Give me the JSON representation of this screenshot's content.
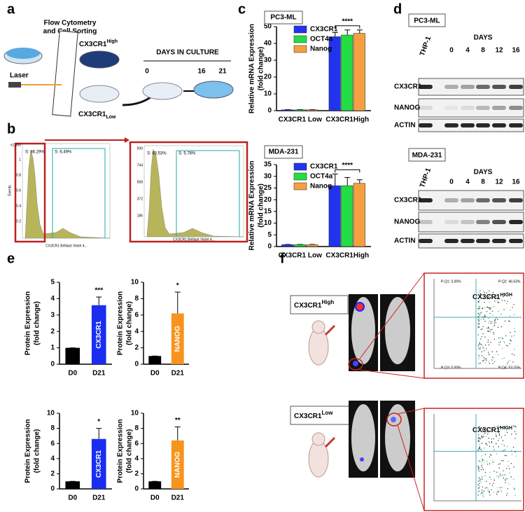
{
  "panel_letters": [
    "a",
    "b",
    "c",
    "d",
    "e",
    "f"
  ],
  "panel_a": {
    "sorting": [
      "Flow Cytometry",
      "and Cell Sorting"
    ],
    "laser": "Laser",
    "high": {
      "name": "CX3CR1",
      "sup": "High"
    },
    "low": {
      "name": "CX3CR1",
      "sup": "Low"
    },
    "culture_title": "DAYS IN CULTURE",
    "days": [
      "0",
      "16",
      "21"
    ]
  },
  "panel_b": {
    "gates_left": [
      "S: 86.29%",
      "S: 6.49%"
    ],
    "gates_right": [
      "S: 83.53%",
      "S: 5.78%"
    ],
    "y_ticks_left": [
      "x1,000",
      "1",
      "0.8",
      "0.6",
      "0.4",
      "0.2"
    ],
    "y_ticks_right": [
      "930",
      "744",
      "558",
      "372",
      "186"
    ],
    "x_label": "CX3CR1 Brilliant Violet 4...",
    "y_label": "Events"
  },
  "panel_d": {
    "blots": [
      {
        "cell_line": "PC3-ML",
        "days_title": "DAYS",
        "lanes": [
          "THP-1",
          "0",
          "4",
          "8",
          "12",
          "16"
        ],
        "rows": [
          "CX3CR1",
          "NANOG",
          "ACTIN"
        ]
      },
      {
        "cell_line": "MDA-231",
        "days_title": "DAYS",
        "lanes": [
          "THP-1",
          "0",
          "4",
          "8",
          "12",
          "16"
        ],
        "rows": [
          "CX3CR1",
          "NANOG",
          "ACTIN"
        ]
      }
    ]
  },
  "panel_f": {
    "groups": [
      {
        "name": "CX3CR1",
        "sup": "High"
      },
      {
        "name": "CX3CR1",
        "sup": "Low"
      }
    ],
    "inset_label": {
      "name": "CX3CR1",
      "sup": "HIGH"
    },
    "quadrants": [
      "P-Q1: 0.00%",
      "P-Q2: 46.63%",
      "P-Q3: 0.00%",
      "P-Q4: 53.15%"
    ]
  },
  "chart_data": [
    {
      "type": "bar",
      "tag": "PC3-ML",
      "y_label": [
        "Relative mRNA Expression",
        "(fold change)"
      ],
      "categories": [
        "CX3CR1 Low",
        "CX3CR1High"
      ],
      "series": [
        {
          "name": "CX3CR1",
          "color": "#2233ee",
          "values": [
            0.5,
            44
          ],
          "errors": [
            0.1,
            2.5
          ]
        },
        {
          "name": "OCT4a",
          "color": "#22dd44",
          "values": [
            0.5,
            45
          ],
          "errors": [
            0.1,
            3
          ]
        },
        {
          "name": "Nanog",
          "color": "#f5a040",
          "values": [
            0.5,
            46
          ],
          "errors": [
            0.1,
            2
          ]
        }
      ],
      "annotation": "****",
      "ylim": [
        0,
        50
      ],
      "yticks": [
        0,
        10,
        20,
        30,
        40,
        50
      ]
    },
    {
      "type": "bar",
      "tag": "MDA-231",
      "y_label": [
        "Relative mRNA Expression",
        "(fold change)"
      ],
      "categories": [
        "CX3CR1 Low",
        "CX3CR1High"
      ],
      "series": [
        {
          "name": "CX3CR1",
          "color": "#2233ee",
          "values": [
            0.8,
            26
          ],
          "errors": [
            0.1,
            5
          ]
        },
        {
          "name": "OCT4a",
          "color": "#22dd44",
          "values": [
            0.8,
            26
          ],
          "errors": [
            0.1,
            3.5
          ]
        },
        {
          "name": "Nanog",
          "color": "#f5a040",
          "values": [
            0.8,
            27
          ],
          "errors": [
            0.1,
            1.5
          ]
        }
      ],
      "annotation": "****",
      "ylim": [
        0,
        35
      ],
      "yticks": [
        0,
        5,
        10,
        15,
        20,
        25,
        30,
        35
      ]
    },
    {
      "type": "bar",
      "y_label": [
        "Protein Expression",
        "(fold change)"
      ],
      "categories": [
        "D0",
        "D21"
      ],
      "values": [
        1,
        3.6
      ],
      "errors": [
        0,
        0.5
      ],
      "colors": [
        "#000000",
        "#1a2df0"
      ],
      "bar_labels": [
        null,
        "CX3CR1"
      ],
      "annotation": "***",
      "ylim": [
        0,
        5
      ],
      "yticks": [
        0,
        1,
        2,
        3,
        4,
        5
      ]
    },
    {
      "type": "bar",
      "y_label": [
        "Protein Expression",
        "(fold change)"
      ],
      "categories": [
        "D0",
        "D21"
      ],
      "values": [
        1,
        6.2
      ],
      "errors": [
        0,
        2.6
      ],
      "colors": [
        "#000000",
        "#f7941d"
      ],
      "bar_labels": [
        null,
        "NANOG"
      ],
      "annotation": "*",
      "ylim": [
        0,
        10
      ],
      "yticks": [
        0,
        2,
        4,
        6,
        8,
        10
      ]
    },
    {
      "type": "bar",
      "y_label": [
        "Protein Expression",
        "(fold change)"
      ],
      "categories": [
        "D0",
        "D21"
      ],
      "values": [
        1,
        6.6
      ],
      "errors": [
        0,
        1.4
      ],
      "colors": [
        "#000000",
        "#1a2df0"
      ],
      "bar_labels": [
        null,
        "CX3CR1"
      ],
      "annotation": "*",
      "ylim": [
        0,
        10
      ],
      "yticks": [
        0,
        2,
        4,
        6,
        8,
        10
      ]
    },
    {
      "type": "bar",
      "y_label": [
        "Protein Expression",
        "(fold change)"
      ],
      "categories": [
        "D0",
        "D21"
      ],
      "values": [
        1,
        6.4
      ],
      "errors": [
        0,
        1.8
      ],
      "colors": [
        "#000000",
        "#f7941d"
      ],
      "bar_labels": [
        null,
        "NANOG"
      ],
      "annotation": "**",
      "ylim": [
        0,
        10
      ],
      "yticks": [
        0,
        2,
        4,
        6,
        8,
        10
      ]
    }
  ]
}
